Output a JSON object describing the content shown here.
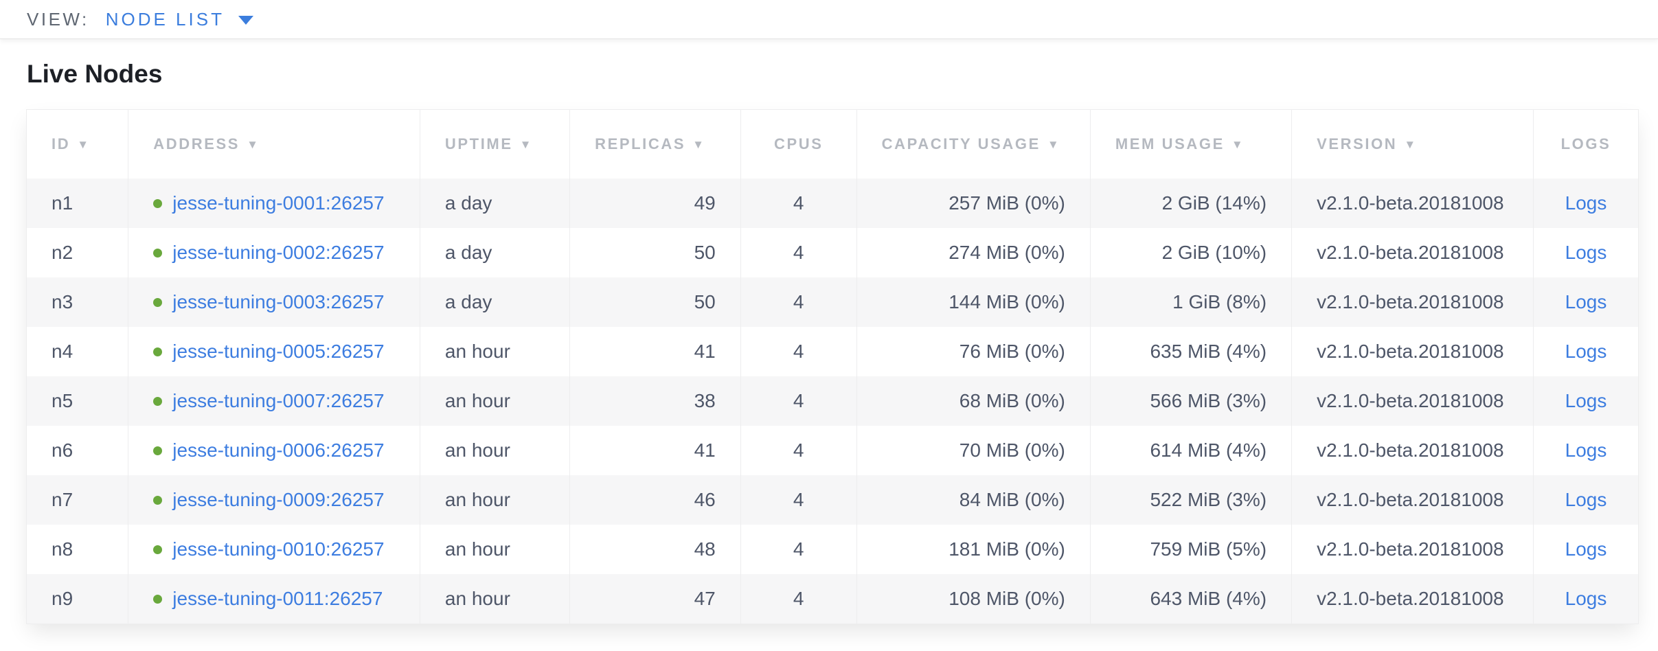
{
  "toolbar": {
    "view_label": "VIEW:",
    "view_value": "NODE LIST"
  },
  "page": {
    "title": "Live Nodes"
  },
  "table": {
    "columns": [
      {
        "key": "id",
        "label": "ID",
        "sortable": true
      },
      {
        "key": "address",
        "label": "ADDRESS",
        "sortable": true
      },
      {
        "key": "uptime",
        "label": "UPTIME",
        "sortable": true
      },
      {
        "key": "replicas",
        "label": "REPLICAS",
        "sortable": true
      },
      {
        "key": "cpus",
        "label": "CPUS",
        "sortable": false
      },
      {
        "key": "capacity",
        "label": "CAPACITY USAGE",
        "sortable": true
      },
      {
        "key": "mem",
        "label": "MEM USAGE",
        "sortable": true
      },
      {
        "key": "version",
        "label": "VERSION",
        "sortable": true
      },
      {
        "key": "logs",
        "label": "LOGS",
        "sortable": false
      }
    ],
    "rows": [
      {
        "id": "n1",
        "address": "jesse-tuning-0001:26257",
        "status": "live",
        "uptime": "a day",
        "replicas": "49",
        "cpus": "4",
        "capacity": "257 MiB (0%)",
        "mem": "2 GiB (14%)",
        "version": "v2.1.0-beta.20181008",
        "logs": "Logs"
      },
      {
        "id": "n2",
        "address": "jesse-tuning-0002:26257",
        "status": "live",
        "uptime": "a day",
        "replicas": "50",
        "cpus": "4",
        "capacity": "274 MiB (0%)",
        "mem": "2 GiB (10%)",
        "version": "v2.1.0-beta.20181008",
        "logs": "Logs"
      },
      {
        "id": "n3",
        "address": "jesse-tuning-0003:26257",
        "status": "live",
        "uptime": "a day",
        "replicas": "50",
        "cpus": "4",
        "capacity": "144 MiB (0%)",
        "mem": "1 GiB (8%)",
        "version": "v2.1.0-beta.20181008",
        "logs": "Logs"
      },
      {
        "id": "n4",
        "address": "jesse-tuning-0005:26257",
        "status": "live",
        "uptime": "an hour",
        "replicas": "41",
        "cpus": "4",
        "capacity": "76 MiB (0%)",
        "mem": "635 MiB (4%)",
        "version": "v2.1.0-beta.20181008",
        "logs": "Logs"
      },
      {
        "id": "n5",
        "address": "jesse-tuning-0007:26257",
        "status": "live",
        "uptime": "an hour",
        "replicas": "38",
        "cpus": "4",
        "capacity": "68 MiB (0%)",
        "mem": "566 MiB (3%)",
        "version": "v2.1.0-beta.20181008",
        "logs": "Logs"
      },
      {
        "id": "n6",
        "address": "jesse-tuning-0006:26257",
        "status": "live",
        "uptime": "an hour",
        "replicas": "41",
        "cpus": "4",
        "capacity": "70 MiB (0%)",
        "mem": "614 MiB (4%)",
        "version": "v2.1.0-beta.20181008",
        "logs": "Logs"
      },
      {
        "id": "n7",
        "address": "jesse-tuning-0009:26257",
        "status": "live",
        "uptime": "an hour",
        "replicas": "46",
        "cpus": "4",
        "capacity": "84 MiB (0%)",
        "mem": "522 MiB (3%)",
        "version": "v2.1.0-beta.20181008",
        "logs": "Logs"
      },
      {
        "id": "n8",
        "address": "jesse-tuning-0010:26257",
        "status": "live",
        "uptime": "an hour",
        "replicas": "48",
        "cpus": "4",
        "capacity": "181 MiB (0%)",
        "mem": "759 MiB (5%)",
        "version": "v2.1.0-beta.20181008",
        "logs": "Logs"
      },
      {
        "id": "n9",
        "address": "jesse-tuning-0011:26257",
        "status": "live",
        "uptime": "an hour",
        "replicas": "47",
        "cpus": "4",
        "capacity": "108 MiB (0%)",
        "mem": "643 MiB (4%)",
        "version": "v2.1.0-beta.20181008",
        "logs": "Logs"
      }
    ]
  },
  "colors": {
    "accent_blue": "#3b7ddd",
    "link_blue": "#3d7de0",
    "live_dot_green": "#69a83c",
    "header_gray": "#b5b9c0",
    "body_text": "#4e5668",
    "row_stripe": "#f6f6f7",
    "grid_border": "#ededee"
  }
}
